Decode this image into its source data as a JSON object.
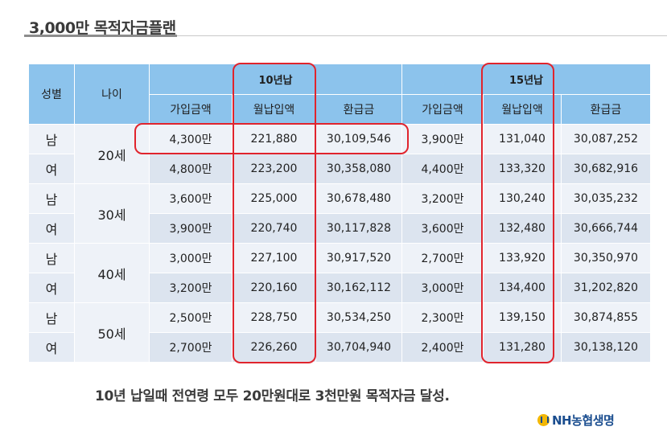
{
  "title": "3,000만 목적자금플랜",
  "headers": {
    "gender": "성별",
    "age": "나이",
    "plan10": "10년납",
    "plan15": "15년납",
    "sub": [
      "가입금액",
      "월납입액",
      "환급금",
      "가입금액",
      "월납입액",
      "환급금"
    ]
  },
  "groups": [
    {
      "age": "20세",
      "rows": [
        {
          "gender": "남",
          "cells": [
            "4,300만",
            "221,880",
            "30,109,546",
            "3,900만",
            "131,040",
            "30,087,252"
          ]
        },
        {
          "gender": "여",
          "cells": [
            "4,800만",
            "223,200",
            "30,358,080",
            "4,400만",
            "133,320",
            "30,682,916"
          ]
        }
      ]
    },
    {
      "age": "30세",
      "rows": [
        {
          "gender": "남",
          "cells": [
            "3,600만",
            "225,000",
            "30,678,480",
            "3,200만",
            "130,240",
            "30,035,232"
          ]
        },
        {
          "gender": "여",
          "cells": [
            "3,900만",
            "220,740",
            "30,117,828",
            "3,600만",
            "132,480",
            "30,666,744"
          ]
        }
      ]
    },
    {
      "age": "40세",
      "rows": [
        {
          "gender": "남",
          "cells": [
            "3,000만",
            "227,100",
            "30,917,520",
            "2,700만",
            "133,920",
            "30,350,970"
          ]
        },
        {
          "gender": "여",
          "cells": [
            "3,200만",
            "220,160",
            "30,162,112",
            "3,000만",
            "134,400",
            "31,202,820"
          ]
        }
      ]
    },
    {
      "age": "50세",
      "rows": [
        {
          "gender": "남",
          "cells": [
            "2,500만",
            "228,750",
            "30,534,250",
            "2,300만",
            "139,150",
            "30,874,855"
          ]
        },
        {
          "gender": "여",
          "cells": [
            "2,700만",
            "226,260",
            "30,704,940",
            "2,400만",
            "131,280",
            "30,138,120"
          ]
        }
      ]
    }
  ],
  "summary": "10년 납일때 전연령 모두 20만원대로 3천만원  목적자금 달성.",
  "logo": {
    "text": "NH농협생명",
    "icon": "nh-logo-icon",
    "color": "#1a4d8f"
  },
  "highlight_color": "#e0242d"
}
